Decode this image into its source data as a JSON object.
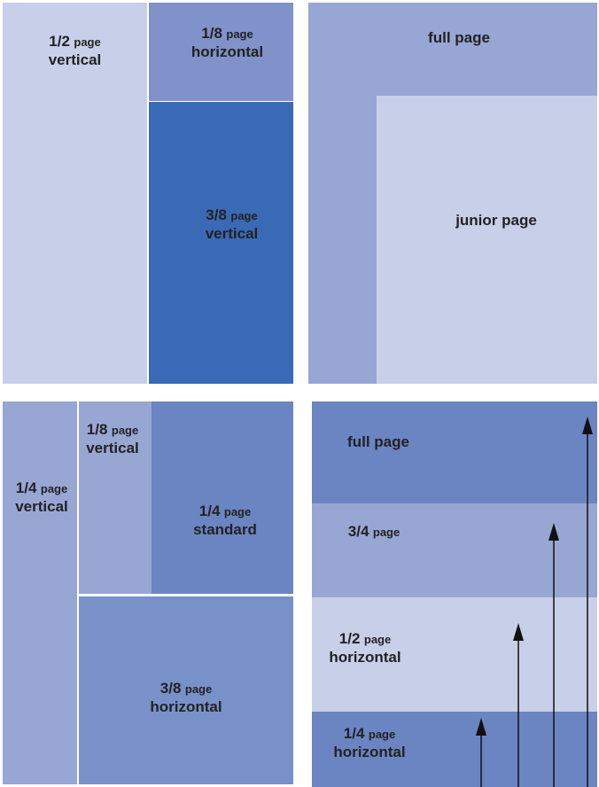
{
  "panel_a": {
    "half_vertical": {
      "size": "1/2",
      "unit": "page",
      "orientation": "vertical"
    },
    "eighth_horizontal": {
      "size": "1/8",
      "unit": "page",
      "orientation": "horizontal"
    },
    "three_eighths_vertical": {
      "size": "3/8",
      "unit": "page",
      "orientation": "vertical"
    }
  },
  "panel_b": {
    "full_page": "full page",
    "junior_page": "junior page"
  },
  "panel_c": {
    "quarter_vertical": {
      "size": "1/4",
      "unit": "page",
      "orientation": "vertical"
    },
    "eighth_vertical": {
      "size": "1/8",
      "unit": "page",
      "orientation": "vertical"
    },
    "quarter_standard": {
      "size": "1/4",
      "unit": "page",
      "orientation": "standard"
    },
    "three_eighths_horizontal": {
      "size": "3/8",
      "unit": "page",
      "orientation": "horizontal"
    }
  },
  "panel_d": {
    "full_page": "full page",
    "three_quarter": {
      "size": "3/4",
      "unit": "page"
    },
    "half_horizontal": {
      "size": "1/2",
      "unit": "page",
      "orientation": "horizontal"
    },
    "quarter_horizontal": {
      "size": "1/4",
      "unit": "page",
      "orientation": "horizontal"
    }
  },
  "colors": {
    "pale": "#c8cfe8",
    "light": "#98a6d4",
    "medium": "#8191c9",
    "dark": "#3a6ab5",
    "steel": "#6b84c2",
    "arrow": "#111111"
  }
}
